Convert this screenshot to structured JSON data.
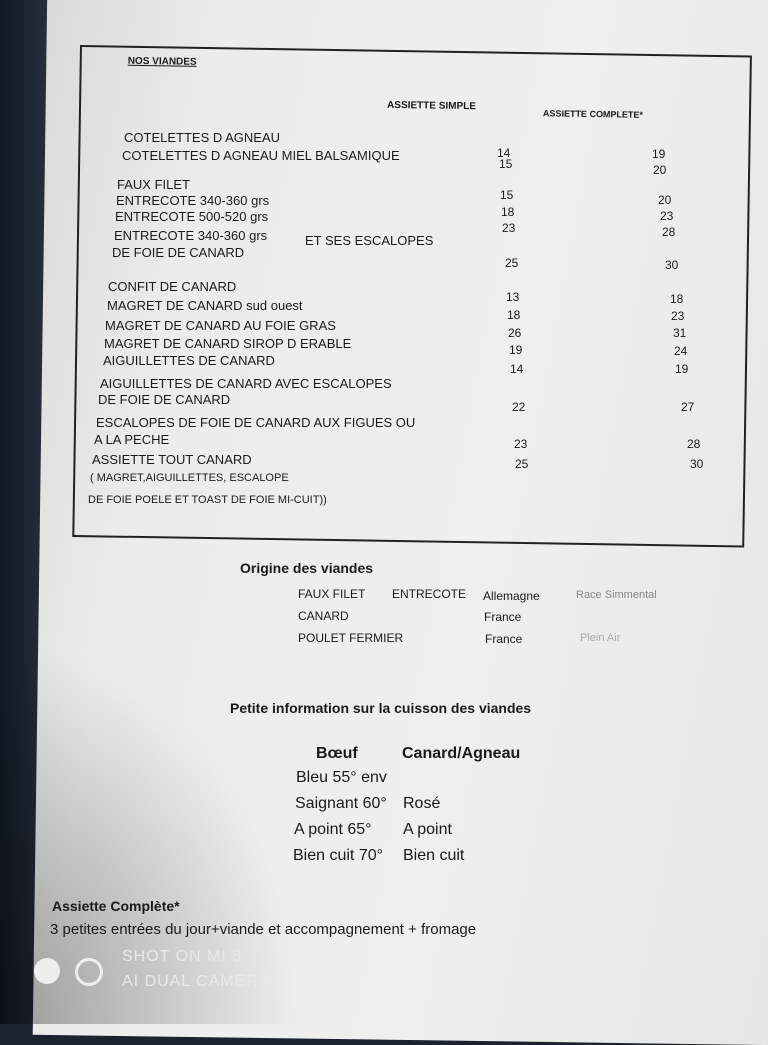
{
  "menu": {
    "title": "NOS VIANDES",
    "col_simple": "ASSIETTE SIMPLE",
    "col_complete": "ASSIETTE COMPLETE*",
    "items": [
      {
        "name": "COTELETTES D AGNEAU",
        "simple": "14",
        "complete": "19"
      },
      {
        "name": "COTELETTES D AGNEAU MIEL BALSAMIQUE",
        "simple": "15",
        "complete": "20"
      },
      {
        "name": "FAUX FILET",
        "simple": "15",
        "complete": "20"
      },
      {
        "name": "ENTRECOTE 340-360 grs",
        "simple": "18",
        "complete": "23"
      },
      {
        "name": "ENTRECOTE 500-520 grs",
        "simple": "23",
        "complete": "28"
      },
      {
        "name": "ENTRECOTE 340-360 grs",
        "extra": "ET SES ESCALOPES",
        "name2": "DE FOIE DE CANARD",
        "simple": "25",
        "complete": "30"
      },
      {
        "name": "CONFIT DE CANARD",
        "simple": "13",
        "complete": "18"
      },
      {
        "name": "MAGRET DE CANARD sud ouest",
        "simple": "18",
        "complete": "23"
      },
      {
        "name": "MAGRET DE CANARD AU FOIE GRAS",
        "simple": "26",
        "complete": "31"
      },
      {
        "name": "MAGRET DE CANARD  SIROP D ERABLE",
        "simple": "19",
        "complete": "24"
      },
      {
        "name": "AIGUILLETTES DE CANARD",
        "simple": "14",
        "complete": "19"
      },
      {
        "name": "AIGUILLETTES DE CANARD AVEC ESCALOPES",
        "name2": "DE FOIE DE CANARD",
        "simple": "22",
        "complete": "27"
      },
      {
        "name": "ESCALOPES DE FOIE DE CANARD AUX FIGUES OU",
        "name2": "A LA PECHE",
        "simple": "23",
        "complete": "28"
      },
      {
        "name": "ASSIETTE TOUT CANARD",
        "name2": "( MAGRET,AIGUILLETTES, ESCALOPE",
        "name3": "DE FOIE POELE ET TOAST DE FOIE MI-CUIT))",
        "simple": "25",
        "complete": "30"
      }
    ]
  },
  "origin": {
    "title": "Origine des viandes",
    "rows": [
      {
        "a": "FAUX FILET",
        "b": "ENTRECOTE",
        "c": "Allemagne",
        "d": "Race Simmental"
      },
      {
        "a": "CANARD",
        "b": "",
        "c": "France",
        "d": ""
      },
      {
        "a": "POULET FERMIER",
        "b": "",
        "c": "France",
        "d": "Plein Air"
      }
    ]
  },
  "cuisson": {
    "title": "Petite information sur la cuisson des viandes",
    "h1": "Bœuf",
    "h2": "Canard/Agneau",
    "rows": [
      {
        "a": "Bleu 55° env",
        "b": ""
      },
      {
        "a": "Saignant 60°",
        "b": "Rosé"
      },
      {
        "a": "A point 65°",
        "b": "A point"
      },
      {
        "a": "Bien cuit 70°",
        "b": "Bien cuit"
      }
    ]
  },
  "footer": {
    "title": "Assiette Complète*",
    "text": "3 petites entrées du jour+viande et accompagnement + fromage"
  },
  "watermark": {
    "line1": "SHOT ON MI 8",
    "line2": "AI DUAL CAMERA"
  }
}
